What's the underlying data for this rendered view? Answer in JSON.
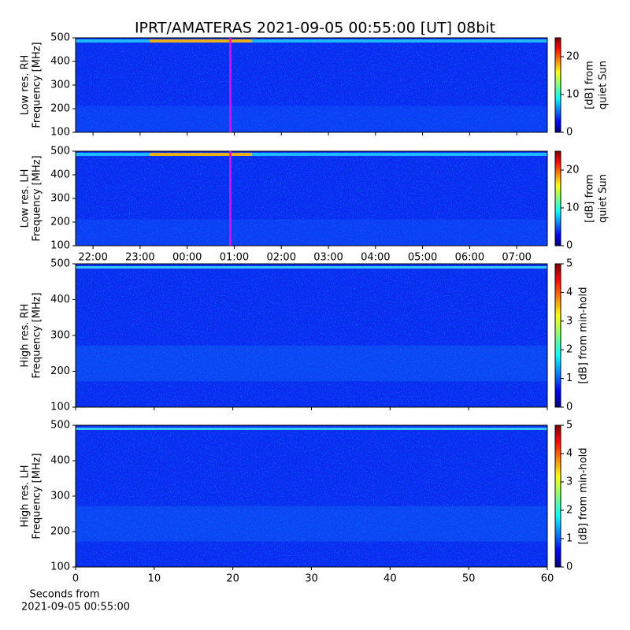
{
  "title": "IPRT/AMATERAS 2021-09-05 00:55:00 [UT]   08bit",
  "chart_data": [
    {
      "type": "heatmap",
      "ylabel": [
        "Low res. RH",
        "Frequency [MHz]"
      ],
      "ylim": [
        100,
        500
      ],
      "yticks": [
        100,
        200,
        300,
        400,
        500
      ],
      "xlim": [
        21.63,
        31.65
      ],
      "xticks": [
        {
          "value": 22,
          "label": "22:00"
        },
        {
          "value": 23,
          "label": "23:00"
        },
        {
          "value": 24,
          "label": "00:00"
        },
        {
          "value": 25,
          "label": "01:00"
        },
        {
          "value": 26,
          "label": "02:00"
        },
        {
          "value": 27,
          "label": "03:00"
        },
        {
          "value": 28,
          "label": "04:00"
        },
        {
          "value": 29,
          "label": "05:00"
        },
        {
          "value": 30,
          "label": "06:00"
        },
        {
          "value": 31,
          "label": "07:00"
        }
      ],
      "show_xtick_labels": false,
      "marker_x": 24.9167,
      "marker_color": "#ff00ff",
      "colormap": "jet",
      "clim": [
        0,
        25
      ],
      "cticks": [
        0,
        10,
        20
      ],
      "clabel": [
        "[dB] from",
        "quiet Sun"
      ]
    },
    {
      "type": "heatmap",
      "ylabel": [
        "Low res. LH",
        "Frequency [MHz]"
      ],
      "ylim": [
        100,
        500
      ],
      "yticks": [
        100,
        200,
        300,
        400,
        500
      ],
      "xlim": [
        21.63,
        31.65
      ],
      "xticks": [
        {
          "value": 22,
          "label": "22:00"
        },
        {
          "value": 23,
          "label": "23:00"
        },
        {
          "value": 24,
          "label": "00:00"
        },
        {
          "value": 25,
          "label": "01:00"
        },
        {
          "value": 26,
          "label": "02:00"
        },
        {
          "value": 27,
          "label": "03:00"
        },
        {
          "value": 28,
          "label": "04:00"
        },
        {
          "value": 29,
          "label": "05:00"
        },
        {
          "value": 30,
          "label": "06:00"
        },
        {
          "value": 31,
          "label": "07:00"
        }
      ],
      "show_xtick_labels": true,
      "marker_x": 24.9167,
      "marker_color": "#ff00ff",
      "colormap": "jet",
      "clim": [
        0,
        25
      ],
      "cticks": [
        0,
        10,
        20
      ],
      "clabel": [
        "[dB] from",
        "quiet Sun"
      ]
    },
    {
      "type": "heatmap",
      "ylabel": [
        "High res. RH",
        "Frequency [MHz]"
      ],
      "ylim": [
        100,
        500
      ],
      "yticks": [
        100,
        200,
        300,
        400,
        500
      ],
      "xlim": [
        0,
        60
      ],
      "xticks": [
        0,
        10,
        20,
        30,
        40,
        50,
        60
      ],
      "show_xtick_labels": false,
      "colormap": "jet",
      "clim": [
        0,
        5
      ],
      "cticks": [
        0,
        1,
        2,
        3,
        4,
        5
      ],
      "clabel": [
        "[dB] from min-hold"
      ]
    },
    {
      "type": "heatmap",
      "ylabel": [
        "High res. LH",
        "Frequency [MHz]"
      ],
      "ylim": [
        100,
        500
      ],
      "yticks": [
        100,
        200,
        300,
        400,
        500
      ],
      "xlim": [
        0,
        60
      ],
      "xticks": [
        0,
        10,
        20,
        30,
        40,
        50,
        60
      ],
      "show_xtick_labels": true,
      "xlabel": [
        "Seconds from",
        "2021-09-05 00:55:00"
      ],
      "colormap": "jet",
      "clim": [
        0,
        5
      ],
      "cticks": [
        0,
        1,
        2,
        3,
        4,
        5
      ],
      "clabel": [
        "[dB] from min-hold"
      ]
    }
  ]
}
